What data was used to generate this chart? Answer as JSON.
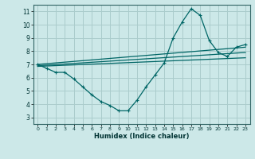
{
  "background_color": "#cce8e8",
  "grid_color": "#aacccc",
  "line_color": "#006666",
  "xlabel": "Humidex (Indice chaleur)",
  "xlim": [
    -0.5,
    23.5
  ],
  "ylim": [
    2.5,
    11.5
  ],
  "xticks": [
    0,
    1,
    2,
    3,
    4,
    5,
    6,
    7,
    8,
    9,
    10,
    11,
    12,
    13,
    14,
    15,
    16,
    17,
    18,
    19,
    20,
    21,
    22,
    23
  ],
  "yticks": [
    3,
    4,
    5,
    6,
    7,
    8,
    9,
    10,
    11
  ],
  "line1_x": [
    0,
    1,
    2,
    3,
    4,
    5,
    6,
    7,
    8,
    9,
    10,
    11,
    12,
    13,
    14,
    15,
    16,
    17,
    18,
    19,
    20,
    21,
    22,
    23
  ],
  "line1_y": [
    7.0,
    6.7,
    6.4,
    6.4,
    5.9,
    5.3,
    4.7,
    4.2,
    3.9,
    3.5,
    3.5,
    4.3,
    5.3,
    6.2,
    7.1,
    9.0,
    10.2,
    11.2,
    10.7,
    8.8,
    7.9,
    7.6,
    8.3,
    8.5
  ],
  "line2_x": [
    0,
    23
  ],
  "line2_y": [
    7.0,
    8.3
  ],
  "line3_x": [
    0,
    23
  ],
  "line3_y": [
    6.9,
    7.9
  ],
  "line4_x": [
    0,
    23
  ],
  "line4_y": [
    6.85,
    7.5
  ]
}
